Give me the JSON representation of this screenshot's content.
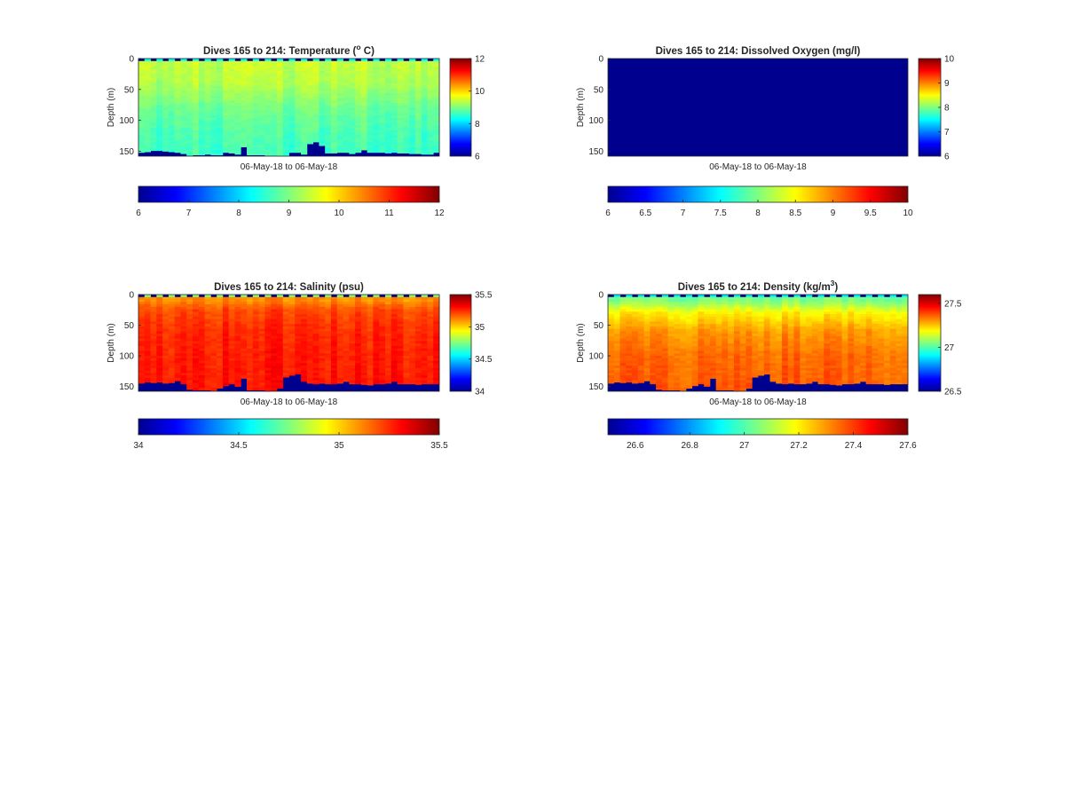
{
  "chart_data": [
    {
      "type": "heatmap",
      "variable": "temperature",
      "title": "Dives 165 to 214: Temperature (",
      "title_sup": "o",
      "title_tail": " C)",
      "xlabel": "06-May-18 to 06-May-18",
      "ylabel": "Depth (m)",
      "ylim": [
        0,
        158
      ],
      "yticks": [
        "0",
        "50",
        "100",
        "150"
      ],
      "ytick_values": [
        0,
        50,
        100,
        150
      ],
      "clim": [
        6,
        12
      ],
      "side_colorbar_ticks": [
        "6",
        "8",
        "10",
        "12"
      ],
      "side_colorbar_values": [
        6,
        8,
        10,
        12
      ],
      "bottom_colorbar_ticks": [
        "6",
        "7",
        "8",
        "9",
        "10",
        "11",
        "12"
      ],
      "bottom_colorbar_values": [
        6,
        7,
        8,
        9,
        10,
        11,
        12
      ],
      "colormap": "jet",
      "n_dives": 50,
      "dive_start": 165,
      "dive_end": 214,
      "surface_profile": [
        9.6,
        8.3
      ],
      "interior_profile": [
        [
          10,
          9.4
        ],
        [
          40,
          9.3
        ],
        [
          80,
          8.9
        ],
        [
          120,
          8.7
        ],
        [
          158,
          8.6
        ]
      ],
      "max_depth_by_dive": [
        152,
        151,
        149,
        149,
        150,
        151,
        152,
        154,
        157,
        156,
        156,
        155,
        156,
        156,
        152,
        153,
        155,
        143,
        156,
        156,
        156,
        157,
        157,
        158,
        158,
        152,
        152,
        155,
        138,
        135,
        141,
        153,
        153,
        152,
        152,
        154,
        152,
        148,
        152,
        152,
        152,
        153,
        152,
        153,
        153,
        154,
        154,
        155,
        155,
        152
      ]
    },
    {
      "type": "heatmap",
      "variable": "dissolved_oxygen",
      "title": "Dives 165 to 214: Dissolved Oxygen (mg/l)",
      "title_sup": "",
      "title_tail": "",
      "xlabel": "06-May-18 to 06-May-18",
      "ylabel": "Depth (m)",
      "ylim": [
        0,
        158
      ],
      "yticks": [
        "0",
        "50",
        "100",
        "150"
      ],
      "ytick_values": [
        0,
        50,
        100,
        150
      ],
      "clim": [
        6,
        10
      ],
      "side_colorbar_ticks": [
        "6",
        "7",
        "8",
        "9",
        "10"
      ],
      "side_colorbar_values": [
        6,
        7,
        8,
        9,
        10
      ],
      "bottom_colorbar_ticks": [
        "6",
        "6.5",
        "7",
        "7.5",
        "8",
        "8.5",
        "9",
        "9.5",
        "10"
      ],
      "bottom_colorbar_values": [
        6,
        6.5,
        7,
        7.5,
        8,
        8.5,
        9,
        9.5,
        10
      ],
      "colormap": "jet",
      "all_values_below_range": true
    },
    {
      "type": "heatmap",
      "variable": "salinity",
      "title": "Dives 165 to 214: Salinity (psu)",
      "title_sup": "",
      "title_tail": "",
      "xlabel": "06-May-18 to 06-May-18",
      "ylabel": "Depth (m)",
      "ylim": [
        0,
        158
      ],
      "yticks": [
        "0",
        "50",
        "100",
        "150"
      ],
      "ytick_values": [
        0,
        50,
        100,
        150
      ],
      "clim": [
        34,
        35.5
      ],
      "side_colorbar_ticks": [
        "34",
        "34.5",
        "35",
        "35.5"
      ],
      "side_colorbar_values": [
        34,
        34.5,
        35,
        35.5
      ],
      "bottom_colorbar_ticks": [
        "34",
        "34.5",
        "35",
        "35.5"
      ],
      "bottom_colorbar_values": [
        34,
        34.5,
        35,
        35.5
      ],
      "colormap": "jet",
      "surface_profile": [
        34.9,
        34.75
      ],
      "interior_profile": [
        [
          10,
          35.1
        ],
        [
          25,
          35.2
        ],
        [
          60,
          35.25
        ],
        [
          100,
          35.27
        ],
        [
          158,
          35.28
        ]
      ],
      "max_depth_by_dive": [
        145,
        143,
        144,
        143,
        145,
        144,
        141,
        146,
        155,
        156,
        156,
        156,
        157,
        153,
        149,
        146,
        150,
        137,
        156,
        156,
        156,
        158,
        157,
        153,
        135,
        132,
        130,
        142,
        145,
        146,
        145,
        146,
        146,
        145,
        142,
        146,
        146,
        147,
        148,
        146,
        146,
        145,
        142,
        146,
        146,
        146,
        147,
        146,
        146,
        146
      ]
    },
    {
      "type": "heatmap",
      "variable": "density",
      "title": "Dives 165 to 214: Density (kg/m",
      "title_sup": "3",
      "title_tail": ")",
      "xlabel": "06-May-18 to 06-May-18",
      "ylabel": "Depth (m)",
      "ylim": [
        0,
        158
      ],
      "yticks": [
        "0",
        "50",
        "100",
        "150"
      ],
      "ytick_values": [
        0,
        50,
        100,
        150
      ],
      "clim": [
        26.5,
        27.6
      ],
      "side_colorbar_ticks": [
        "26.5",
        "27",
        "27.5"
      ],
      "side_colorbar_values": [
        26.5,
        27,
        27.5
      ],
      "bottom_colorbar_ticks": [
        "26.6",
        "26.8",
        "27",
        "27.2",
        "27.4",
        "27.6"
      ],
      "bottom_colorbar_values": [
        26.6,
        26.8,
        27,
        27.2,
        27.4,
        27.6
      ],
      "colormap": "jet",
      "surface_profile": [
        27.0,
        26.9
      ],
      "interior_profile": [
        [
          10,
          27.05
        ],
        [
          30,
          27.2
        ],
        [
          60,
          27.3
        ],
        [
          100,
          27.35
        ],
        [
          158,
          27.37
        ]
      ],
      "max_depth_by_dive": [
        145,
        143,
        144,
        143,
        145,
        144,
        141,
        146,
        155,
        156,
        156,
        156,
        157,
        153,
        149,
        146,
        150,
        137,
        156,
        156,
        156,
        158,
        157,
        153,
        135,
        132,
        130,
        142,
        145,
        146,
        145,
        146,
        146,
        145,
        142,
        146,
        146,
        147,
        148,
        146,
        146,
        145,
        142,
        146,
        146,
        146,
        147,
        146,
        146,
        146
      ]
    }
  ]
}
